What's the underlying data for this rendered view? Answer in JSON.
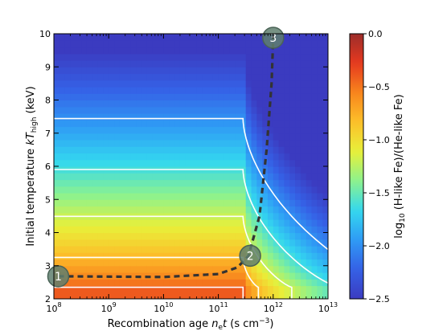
{
  "chart_data": {
    "type": "heatmap",
    "xlabel": "Recombination age n_e t (s cm^-3)",
    "ylabel": "Initial temperature kT_high (keV)",
    "colorbar_label": "log10 (H-like Fe)/(He-like Fe)",
    "x_scale": "log",
    "xlim_log10": [
      8,
      13
    ],
    "ylim": [
      2,
      10
    ],
    "x_ticks": [
      {
        "exp": "8",
        "log10": 8
      },
      {
        "exp": "9",
        "log10": 9
      },
      {
        "exp": "10",
        "log10": 10
      },
      {
        "exp": "11",
        "log10": 11
      },
      {
        "exp": "12",
        "log10": 12
      },
      {
        "exp": "13",
        "log10": 13
      }
    ],
    "y_ticks": [
      2,
      3,
      4,
      5,
      6,
      7,
      8,
      9,
      10
    ],
    "colorbar_range": [
      -2.5,
      0.0
    ],
    "colorbar_ticks": [
      {
        "label": "0.0",
        "value": 0.0
      },
      {
        "label": "−0.5",
        "value": -0.5
      },
      {
        "label": "−1.0",
        "value": -1.0
      },
      {
        "label": "−1.5",
        "value": -1.5
      },
      {
        "label": "−2.0",
        "value": -2.0
      },
      {
        "label": "−2.5",
        "value": -2.5
      }
    ],
    "colormap": [
      "#3b3bc0",
      "#3561e6",
      "#2f9bf5",
      "#34d8ef",
      "#8cf28e",
      "#e8f03a",
      "#fcc02a",
      "#f8851d",
      "#e6391f",
      "#9c2d2a"
    ],
    "contour_levels": [
      -0.4,
      -0.8,
      -1.2,
      -1.6,
      -2.0
    ],
    "contour_color": "#ffffff",
    "trajectory": {
      "style": "dashed",
      "color": "#333333",
      "points": [
        {
          "log10_x": 8.08,
          "y": 2.68
        },
        {
          "log10_x": 10.0,
          "y": 2.66
        },
        {
          "log10_x": 11.0,
          "y": 2.75
        },
        {
          "log10_x": 11.35,
          "y": 2.95
        },
        {
          "log10_x": 11.55,
          "y": 3.3
        },
        {
          "log10_x": 11.75,
          "y": 4.5
        },
        {
          "log10_x": 11.88,
          "y": 6.5
        },
        {
          "log10_x": 11.97,
          "y": 8.5
        },
        {
          "log10_x": 12.0,
          "y": 9.88
        }
      ]
    },
    "markers": [
      {
        "label": "1",
        "log10_x": 8.08,
        "y": 2.68
      },
      {
        "label": "2",
        "log10_x": 11.58,
        "y": 3.3
      },
      {
        "label": "3",
        "log10_x": 12.0,
        "y": 9.88
      }
    ]
  }
}
